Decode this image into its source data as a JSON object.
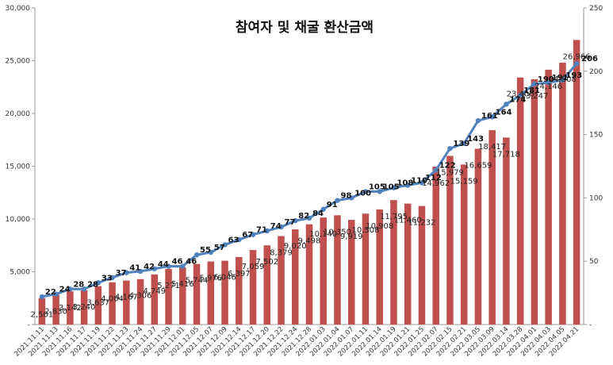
{
  "chart_data": {
    "type": "bar+line",
    "title": "참여자 및 채굴 환산금액",
    "categories": [
      "2021.11.11",
      "2021.11.13",
      "2021.11.16",
      "2021.11.17",
      "2021.11.19",
      "2021.11.22",
      "2021.11.23",
      "2021.11.24",
      "2021.11.27",
      "2021.11.29",
      "2021.12.01",
      "2021.12.05",
      "2021.12.07",
      "2021.12.09",
      "2021.12.14",
      "2021.12.17",
      "2021.12.20",
      "2021.12.22",
      "2021.12.24",
      "2021.12.28",
      "2022.01.03",
      "2022.01.04",
      "2022.01.07",
      "2022.01.11",
      "2022.01.14",
      "2022.01.19",
      "2022.01.21",
      "2022.01.25",
      "2022.02.07",
      "2022.02.15",
      "2022.02.21",
      "2022.03.05",
      "2022.03.09",
      "2022.03.14",
      "2022.03.28",
      "2022.04.01",
      "2022.04.03",
      "2022.04.05",
      "2022.04.21"
    ],
    "series": [
      {
        "axis": "left",
        "kind": "bar",
        "color": "#c0504d",
        "values": [
          2501,
          2830,
          3142,
          3240,
          3637,
          4004,
          4167,
          4306,
          4749,
          5271,
          5416,
          5744,
          5976,
          6046,
          6397,
          7059,
          7502,
          8379,
          9020,
          9498,
          10140,
          10350,
          9919,
          10508,
          10908,
          11795,
          11460,
          11232,
          14962,
          15979,
          15159,
          16659,
          18417,
          17718,
          23406,
          23247,
          24146,
          24808,
          26966
        ],
        "labels": [
          "2,501",
          "2,830",
          "3,142",
          "3,240",
          "3,637",
          "4,004",
          "4,167",
          "4,306",
          "4,749",
          "5,271",
          "5,416",
          "5,744",
          "5,976",
          "6,046",
          "6,397",
          "7,059",
          "7,502",
          "8,379",
          "9,020",
          "9,498",
          "10,140",
          "10,350",
          "9,919",
          "10,508",
          "10,908",
          "11,795",
          "11,460",
          "11,232",
          "14,962",
          "15,979",
          "15,159",
          "16,659",
          "18,417",
          "17,718",
          "23,406",
          "23,247",
          "24,146",
          "24,808",
          "26,966"
        ]
      },
      {
        "axis": "right",
        "kind": "line",
        "color": "#4f81bd",
        "values": [
          22,
          24,
          28,
          28,
          33,
          37,
          41,
          42,
          44,
          46,
          46,
          55,
          57,
          63,
          67,
          71,
          74,
          77,
          82,
          84,
          91,
          98,
          100,
          105,
          105,
          108,
          110,
          112,
          122,
          139,
          143,
          161,
          164,
          174,
          181,
          190,
          191,
          193,
          206
        ],
        "labels": [
          "22",
          "24",
          "28",
          "28",
          "33",
          "37",
          "41",
          "42",
          "44",
          "46",
          "46",
          "55",
          "57",
          "63",
          "67",
          "71",
          "74",
          "77",
          "82",
          "84",
          "91",
          "98",
          "100",
          "105",
          "105",
          "108",
          "110",
          "112",
          "122",
          "139",
          "143",
          "161",
          "164",
          "174",
          "181",
          "190",
          "191",
          "193",
          "206"
        ]
      }
    ],
    "y_left": {
      "min": 0,
      "max": 30000,
      "ticks": [
        "-",
        "5,000",
        "10,000",
        "15,000",
        "20,000",
        "25,000",
        "30,000"
      ]
    },
    "y_right": {
      "min": 0,
      "max": 250,
      "ticks": [
        "-",
        "50",
        "100",
        "150",
        "200",
        "250"
      ]
    },
    "grid": false,
    "legend": "none"
  }
}
